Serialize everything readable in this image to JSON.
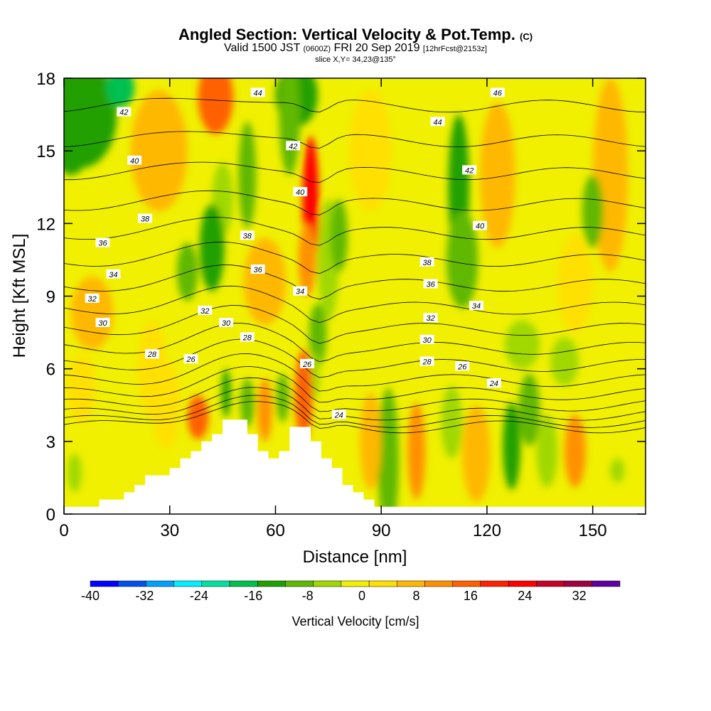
{
  "chart_data": {
    "type": "heatmap",
    "title": "Angled Section: Vertical Velocity & Pot.Temp.",
    "title_unit": "(C)",
    "subtitle_main": "Valid 1500 JST",
    "subtitle_z": "(0600Z)",
    "subtitle_date": "FRI 20 Sep 2019",
    "subtitle_fcst": "[12hrFcst@2153z]",
    "slice_label": "slice X,Y= 34,23@135°",
    "xlabel": "Distance [nm]",
    "ylabel": "Height [Kft MSL]",
    "xlim": [
      0,
      165
    ],
    "ylim": [
      0,
      18
    ],
    "xticks": [
      "0",
      "30",
      "60",
      "90",
      "120",
      "150"
    ],
    "xtick_values": [
      0,
      30,
      60,
      90,
      120,
      150
    ],
    "yticks": [
      "0",
      "3",
      "6",
      "9",
      "12",
      "15",
      "18"
    ],
    "ytick_values": [
      0,
      3,
      6,
      9,
      12,
      15,
      18
    ],
    "colorbar": {
      "label": "Vertical Velocity [cm/s]",
      "range": [
        -40,
        38
      ],
      "tick_labels": [
        "-40",
        "-32",
        "-24",
        "-16",
        "-8",
        "0",
        "8",
        "16",
        "24",
        "32"
      ],
      "tick_values": [
        -40,
        -32,
        -24,
        -16,
        -8,
        0,
        8,
        16,
        24,
        32
      ],
      "colors": [
        "#0000ff",
        "#0050f0",
        "#00a0ff",
        "#00f0ff",
        "#00e0a0",
        "#00c050",
        "#20a000",
        "#60b800",
        "#a0d800",
        "#f0f000",
        "#ffe000",
        "#ffb800",
        "#ff9000",
        "#ff6000",
        "#ff2000",
        "#ff0000",
        "#c80028",
        "#a00040",
        "#6000a0"
      ]
    },
    "isentropes": {
      "levels": [
        24,
        26,
        28,
        30,
        32,
        34,
        36,
        38,
        40,
        42,
        44,
        46
      ],
      "labels": [
        {
          "text": "42",
          "x": 17,
          "y": 16.6
        },
        {
          "text": "44",
          "x": 55,
          "y": 17.4
        },
        {
          "text": "46",
          "x": 123,
          "y": 17.4
        },
        {
          "text": "44",
          "x": 106,
          "y": 16.2
        },
        {
          "text": "42",
          "x": 65,
          "y": 15.2
        },
        {
          "text": "40",
          "x": 20,
          "y": 14.6
        },
        {
          "text": "42",
          "x": 115,
          "y": 14.2
        },
        {
          "text": "40",
          "x": 67,
          "y": 13.3
        },
        {
          "text": "38",
          "x": 23,
          "y": 12.2
        },
        {
          "text": "40",
          "x": 118,
          "y": 11.9
        },
        {
          "text": "38",
          "x": 52,
          "y": 11.5
        },
        {
          "text": "36",
          "x": 11,
          "y": 11.2
        },
        {
          "text": "38",
          "x": 103,
          "y": 10.4
        },
        {
          "text": "36",
          "x": 55,
          "y": 10.1
        },
        {
          "text": "34",
          "x": 14,
          "y": 9.9
        },
        {
          "text": "36",
          "x": 104,
          "y": 9.5
        },
        {
          "text": "34",
          "x": 67,
          "y": 9.2
        },
        {
          "text": "32",
          "x": 8,
          "y": 8.9
        },
        {
          "text": "34",
          "x": 117,
          "y": 8.6
        },
        {
          "text": "32",
          "x": 40,
          "y": 8.4
        },
        {
          "text": "32",
          "x": 104,
          "y": 8.1
        },
        {
          "text": "30",
          "x": 11,
          "y": 7.9
        },
        {
          "text": "30",
          "x": 46,
          "y": 7.9
        },
        {
          "text": "28",
          "x": 52,
          "y": 7.3
        },
        {
          "text": "30",
          "x": 103,
          "y": 7.2
        },
        {
          "text": "28",
          "x": 25,
          "y": 6.6
        },
        {
          "text": "26",
          "x": 36,
          "y": 6.4
        },
        {
          "text": "28",
          "x": 103,
          "y": 6.3
        },
        {
          "text": "26",
          "x": 69,
          "y": 6.2
        },
        {
          "text": "26",
          "x": 113,
          "y": 6.1
        },
        {
          "text": "24",
          "x": 122,
          "y": 5.4
        },
        {
          "text": "24",
          "x": 78,
          "y": 4.1
        }
      ]
    },
    "terrain": {
      "x": [
        0,
        10,
        10,
        17,
        17,
        20,
        20,
        23,
        23,
        30,
        30,
        33,
        33,
        36,
        36,
        39,
        39,
        42,
        42,
        45,
        45,
        52,
        52,
        55,
        55,
        58,
        58,
        61,
        61,
        64,
        64,
        70,
        70,
        73,
        73,
        76,
        76,
        79,
        79,
        82,
        82,
        85,
        85,
        88,
        88,
        90,
        90,
        165
      ],
      "height": [
        0.3,
        0.3,
        0.6,
        0.6,
        0.9,
        0.9,
        1.2,
        1.2,
        1.6,
        1.6,
        1.9,
        1.9,
        2.3,
        2.3,
        2.6,
        2.6,
        3.0,
        3.0,
        3.3,
        3.3,
        3.9,
        3.9,
        3.3,
        3.3,
        2.6,
        2.6,
        2.3,
        2.3,
        2.6,
        2.6,
        3.6,
        3.6,
        3.0,
        3.0,
        2.3,
        2.3,
        1.9,
        1.9,
        1.2,
        1.2,
        0.9,
        0.9,
        0.6,
        0.6,
        0.3,
        0.3,
        0.3,
        0.3
      ]
    },
    "velocity_features": [
      {
        "x": 5,
        "z": 16.5,
        "w": -14,
        "rx": 10,
        "rz": 2.2
      },
      {
        "x": 16,
        "z": 17.6,
        "w": -16,
        "rx": 4,
        "rz": 0.8
      },
      {
        "x": 2,
        "z": 15.2,
        "w": -12,
        "rx": 5,
        "rz": 1.2
      },
      {
        "x": 43,
        "z": 17.2,
        "w": 14,
        "rx": 5,
        "rz": 1.5
      },
      {
        "x": 27,
        "z": 15.0,
        "w": 6,
        "rx": 8,
        "rz": 2.5
      },
      {
        "x": 66,
        "z": 17.3,
        "w": -14,
        "rx": 6,
        "rz": 1.3
      },
      {
        "x": 64,
        "z": 16.5,
        "w": -10,
        "rx": 3,
        "rz": 2.5
      },
      {
        "x": 52,
        "z": 14.0,
        "w": -10,
        "rx": 2.5,
        "rz": 2.2
      },
      {
        "x": 45,
        "z": 13.0,
        "w": -7,
        "rx": 3,
        "rz": 1.5
      },
      {
        "x": 42,
        "z": 11.0,
        "w": -14,
        "rx": 3.5,
        "rz": 1.8
      },
      {
        "x": 35,
        "z": 10.0,
        "w": -8,
        "rx": 3,
        "rz": 1.2
      },
      {
        "x": 70,
        "z": 12.8,
        "w": 22,
        "rx": 2.3,
        "rz": 2.8
      },
      {
        "x": 69,
        "z": 10.5,
        "w": 10,
        "rx": 2.5,
        "rz": 1.5
      },
      {
        "x": 57,
        "z": 9.6,
        "w": 8,
        "rx": 6,
        "rz": 1.8
      },
      {
        "x": 75,
        "z": 10.5,
        "w": -7,
        "rx": 3,
        "rz": 2.5
      },
      {
        "x": 78,
        "z": 11.5,
        "w": -9,
        "rx": 2.5,
        "rz": 1.5
      },
      {
        "x": 87,
        "z": 15.0,
        "w": 4,
        "rx": 6,
        "rz": 2.5
      },
      {
        "x": 112,
        "z": 13.5,
        "w": -12,
        "rx": 3,
        "rz": 3.0
      },
      {
        "x": 113,
        "z": 10.5,
        "w": -10,
        "rx": 4.5,
        "rz": 2.0
      },
      {
        "x": 123,
        "z": 14.0,
        "w": 6,
        "rx": 5,
        "rz": 3.0
      },
      {
        "x": 155,
        "z": 14.0,
        "w": 6,
        "rx": 5,
        "rz": 4.0
      },
      {
        "x": 150,
        "z": 12.5,
        "w": -8,
        "rx": 3,
        "rz": 1.5
      },
      {
        "x": 130,
        "z": 7.0,
        "w": -6,
        "rx": 5,
        "rz": 1.0
      },
      {
        "x": 142,
        "z": 6.3,
        "w": -7,
        "rx": 4,
        "rz": 1.0
      },
      {
        "x": 72,
        "z": 7.4,
        "w": -9,
        "rx": 2.5,
        "rz": 1.3
      },
      {
        "x": 71,
        "z": 5.7,
        "w": -6,
        "rx": 1.5,
        "rz": 1.0
      },
      {
        "x": 68,
        "z": 5.1,
        "w": 32,
        "rx": 1.3,
        "rz": 1.0
      },
      {
        "x": 68,
        "z": 4.9,
        "w": 16,
        "rx": 2.5,
        "rz": 1.9
      },
      {
        "x": 62,
        "z": 4.8,
        "w": -10,
        "rx": 1.8,
        "rz": 1.0
      },
      {
        "x": 57,
        "z": 4.3,
        "w": 10,
        "rx": 2,
        "rz": 1.3
      },
      {
        "x": 52,
        "z": 4.6,
        "w": -10,
        "rx": 2,
        "rz": 1.0
      },
      {
        "x": 46,
        "z": 5.0,
        "w": -13,
        "rx": 1.3,
        "rz": 1.0
      },
      {
        "x": 38,
        "z": 4.0,
        "w": 16,
        "rx": 3,
        "rz": 0.9
      },
      {
        "x": 29,
        "z": 4.5,
        "w": 4,
        "rx": 4,
        "rz": 1.8
      },
      {
        "x": 100,
        "z": 2.5,
        "w": 24,
        "rx": 1.3,
        "rz": 1.1
      },
      {
        "x": 100,
        "z": 2.6,
        "w": 12,
        "rx": 2.5,
        "rz": 2.0
      },
      {
        "x": 92,
        "z": 2.2,
        "w": -8,
        "rx": 3,
        "rz": 3.0
      },
      {
        "x": 87,
        "z": 3.0,
        "w": 8,
        "rx": 3,
        "rz": 2.0
      },
      {
        "x": 110,
        "z": 3.8,
        "w": -7,
        "rx": 3,
        "rz": 1.5
      },
      {
        "x": 117,
        "z": 2.5,
        "w": 6,
        "rx": 4,
        "rz": 2.0
      },
      {
        "x": 127,
        "z": 2.8,
        "w": -14,
        "rx": 2.5,
        "rz": 1.8
      },
      {
        "x": 132,
        "z": 4.3,
        "w": -8,
        "rx": 3,
        "rz": 1.5
      },
      {
        "x": 137,
        "z": 2.6,
        "w": -6,
        "rx": 3,
        "rz": 1.5
      },
      {
        "x": 145,
        "z": 2.6,
        "w": 10,
        "rx": 3,
        "rz": 1.5
      },
      {
        "x": 157,
        "z": 1.8,
        "w": -7,
        "rx": 2,
        "rz": 0.5
      },
      {
        "x": 3,
        "z": 1.7,
        "w": -7,
        "rx": 2,
        "rz": 0.8
      },
      {
        "x": 8,
        "z": 8.3,
        "w": 6,
        "rx": 6,
        "rz": 1.5
      },
      {
        "x": 25,
        "z": 6.0,
        "w": 5,
        "rx": 4,
        "rz": 2.0
      },
      {
        "x": 5,
        "z": 5.2,
        "w": 5,
        "rx": 4,
        "rz": 1.4
      },
      {
        "x": 145,
        "z": 9.5,
        "w": 5,
        "rx": 5,
        "rz": 2.0
      }
    ]
  }
}
